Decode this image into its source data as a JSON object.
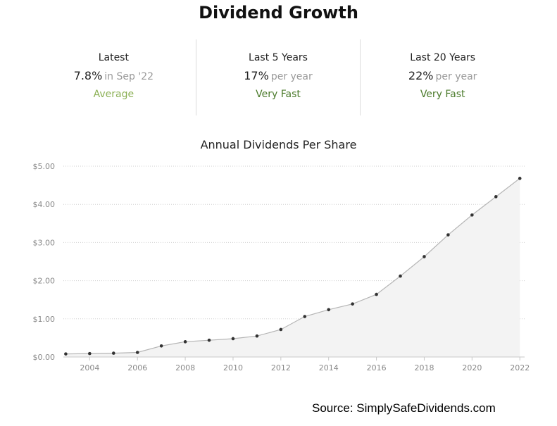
{
  "page_title": "Dividend Growth",
  "stats": [
    {
      "label": "Latest",
      "value": "7.8%",
      "suffix": "in Sep '22",
      "rating": "Average",
      "rating_color": "#8bb054"
    },
    {
      "label": "Last 5 Years",
      "value": "17%",
      "suffix": "per year",
      "rating": "Very Fast",
      "rating_color": "#4a7a2a"
    },
    {
      "label": "Last 20 Years",
      "value": "22%",
      "suffix": "per year",
      "rating": "Very Fast",
      "rating_color": "#4a7a2a"
    }
  ],
  "chart_data": {
    "type": "area",
    "title": "Annual Dividends Per Share",
    "x": [
      2003,
      2004,
      2005,
      2006,
      2007,
      2008,
      2009,
      2010,
      2011,
      2012,
      2013,
      2014,
      2015,
      2016,
      2017,
      2018,
      2019,
      2020,
      2021,
      2022
    ],
    "values": [
      0.08,
      0.09,
      0.1,
      0.12,
      0.29,
      0.4,
      0.44,
      0.48,
      0.55,
      0.72,
      1.06,
      1.24,
      1.39,
      1.64,
      2.12,
      2.63,
      3.2,
      3.72,
      4.2,
      4.68
    ],
    "x_ticks": [
      "2004",
      "2006",
      "2008",
      "2010",
      "2012",
      "2014",
      "2016",
      "2018",
      "2020",
      "2022"
    ],
    "y_ticks": [
      "$0.00",
      "$1.00",
      "$2.00",
      "$3.00",
      "$4.00",
      "$5.00"
    ],
    "ylim": [
      0,
      5
    ],
    "xlim": [
      2002.9,
      2022.2
    ],
    "grid": true,
    "colors": {
      "line": "#b5b5b5",
      "fill": "#f3f3f3",
      "point": "#333333",
      "grid": "#cfcfcf"
    }
  },
  "source": "Source: SimplySafeDividends.com"
}
